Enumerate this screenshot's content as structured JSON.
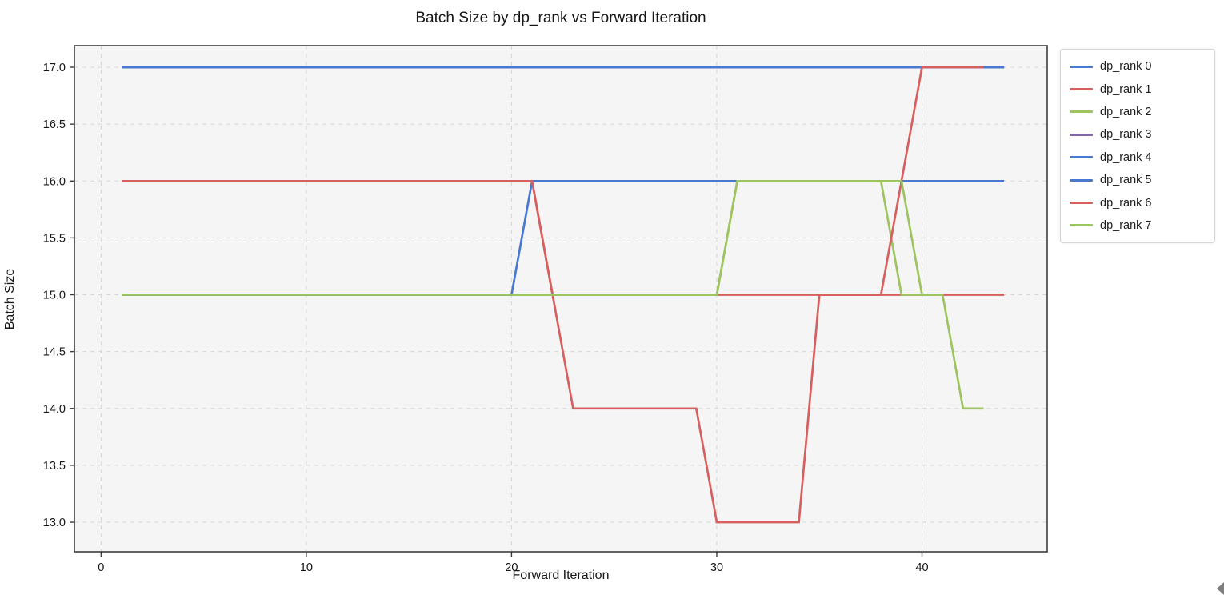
{
  "chart_data": {
    "type": "line",
    "title": "Batch Size by dp_rank vs Forward Iteration",
    "xlabel": "Forward Iteration",
    "ylabel": "Batch Size",
    "xlim": [
      -1.3,
      46.1
    ],
    "ylim": [
      12.74,
      17.19
    ],
    "xticks": [
      0,
      10,
      20,
      30,
      40
    ],
    "yticks": [
      13.0,
      13.5,
      14.0,
      14.5,
      15.0,
      15.5,
      16.0,
      16.5,
      17.0
    ],
    "grid": true,
    "grid_style": "dashed",
    "legend_position": "outside-right",
    "x_unit": "iteration",
    "series": [
      {
        "name": "dp_rank 0",
        "color": "#4878cf",
        "segments": [
          {
            "from": 1,
            "to": 44,
            "value": 17
          }
        ]
      },
      {
        "name": "dp_rank 1",
        "color": "#d65f5f",
        "segments": [
          {
            "from": 1,
            "to": 21,
            "value": 16
          },
          {
            "from": 22,
            "to": 44,
            "value": 15
          }
        ]
      },
      {
        "name": "dp_rank 2",
        "color": "#9dc45f",
        "segments": [
          {
            "from": 1,
            "to": 30,
            "value": 15
          },
          {
            "from": 31,
            "to": 38,
            "value": 16
          },
          {
            "from": 39,
            "to": 41,
            "value": 15
          },
          {
            "from": 42,
            "to": 43,
            "value": 14
          }
        ]
      },
      {
        "name": "dp_rank 3",
        "color": "#7e68a8",
        "segments": [
          {
            "from": 1,
            "to": 44,
            "value": 17
          }
        ]
      },
      {
        "name": "dp_rank 4",
        "color": "#4878cf",
        "segments": [
          {
            "from": 1,
            "to": 44,
            "value": 17
          }
        ]
      },
      {
        "name": "dp_rank 5",
        "color": "#4878cf",
        "segments": [
          {
            "from": 1,
            "to": 20,
            "value": 15
          },
          {
            "from": 21,
            "to": 44,
            "value": 16
          }
        ]
      },
      {
        "name": "dp_rank 6",
        "color": "#d65f5f",
        "segments": [
          {
            "from": 1,
            "to": 21,
            "value": 16
          },
          {
            "from": 22,
            "to": 22,
            "value": 15
          },
          {
            "from": 23,
            "to": 29,
            "value": 14
          },
          {
            "from": 30,
            "to": 34,
            "value": 13
          },
          {
            "from": 35,
            "to": 38,
            "value": 15
          },
          {
            "from": 39,
            "to": 39,
            "value": 16
          },
          {
            "from": 40,
            "to": 43,
            "value": 17
          }
        ]
      },
      {
        "name": "dp_rank 7",
        "color": "#9dc45f",
        "segments": [
          {
            "from": 1,
            "to": 30,
            "value": 15
          },
          {
            "from": 31,
            "to": 39,
            "value": 16
          },
          {
            "from": 40,
            "to": 41,
            "value": 15
          }
        ]
      }
    ],
    "style": {
      "axes_background": "#f5f5f5",
      "grid_color": "#d6d6d6",
      "spine_color": "#3d3d3d",
      "tick_label_color": "#161616",
      "line_width": 2.7
    }
  }
}
